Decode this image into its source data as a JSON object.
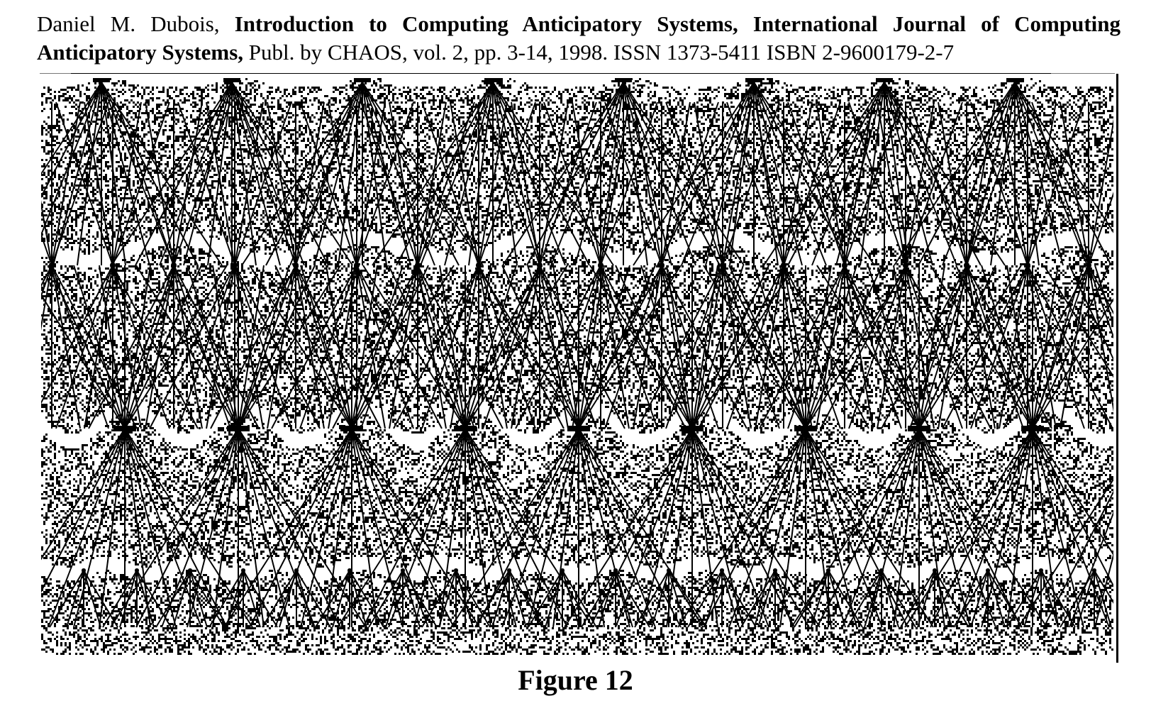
{
  "citation": {
    "author": "Daniel M. Dubois,",
    "title": "Introduction to Computing Anticipatory Systems, International Journal of Computing Anticipatory Systems,",
    "publication": "Publ. by CHAOS, vol. 2, pp. 3-14, 1998. ISSN 1373-5411 ISBN 2-9600179-2-7"
  },
  "figure": {
    "caption": "Figure 12"
  }
}
